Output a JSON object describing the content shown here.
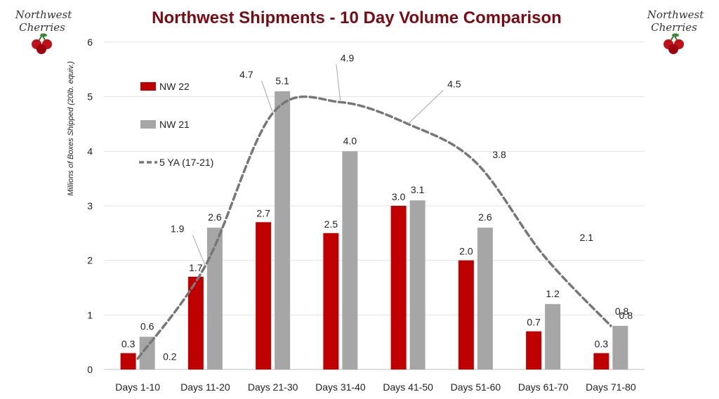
{
  "chart_data": {
    "type": "bar",
    "title": "Northwest Shipments - 10 Day Volume Comparison",
    "ylabel": "Millions of Boxes Shipped (20lb. equiv.)",
    "xlabel": "",
    "ylim": [
      0,
      6
    ],
    "yticks": [
      0,
      1,
      2,
      3,
      4,
      5,
      6
    ],
    "grid": "horizontal",
    "legend_position": "top-left",
    "categories": [
      "Days 1-10",
      "Days 11-20",
      "Days 21-30",
      "Days 31-40",
      "Days 41-50",
      "Days 51-60",
      "Days 61-70",
      "Days 71-80"
    ],
    "series": [
      {
        "name": "NW 22",
        "kind": "bar",
        "color": "#c00000",
        "values": [
          0.3,
          1.7,
          2.7,
          2.5,
          3.0,
          2.0,
          0.7,
          0.3
        ],
        "labels": [
          "0.3",
          "1.7",
          "2.7",
          "2.5",
          "3.0",
          "2.0",
          "0.7",
          "0.3"
        ]
      },
      {
        "name": "NW 21",
        "kind": "bar",
        "color": "#a6a6a6",
        "values": [
          0.6,
          2.6,
          5.1,
          4.0,
          3.1,
          2.6,
          1.2,
          0.8
        ],
        "labels": [
          "0.6",
          "2.6",
          "5.1",
          "4.0",
          "3.1",
          "2.6",
          "1.2",
          "0.8"
        ]
      },
      {
        "name": "5 YA (17-21)",
        "kind": "line-dashed",
        "color": "#777777",
        "values": [
          0.2,
          1.9,
          4.7,
          4.9,
          4.5,
          3.8,
          2.1,
          0.8
        ],
        "labels": [
          "0.2",
          "1.9",
          "4.7",
          "4.9",
          "4.5",
          "3.8",
          "2.1",
          "0.8"
        ]
      }
    ]
  },
  "logos": {
    "left": [
      "Northwest",
      "Cherries"
    ],
    "right": [
      "Northwest",
      "Cherries"
    ]
  }
}
